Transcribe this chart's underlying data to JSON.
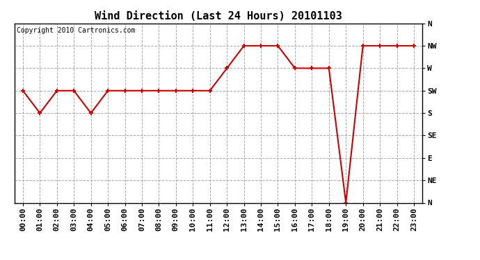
{
  "title": "Wind Direction (Last 24 Hours) 20101103",
  "copyright": "Copyright 2010 Cartronics.com",
  "hours": [
    "00:00",
    "01:00",
    "02:00",
    "03:00",
    "04:00",
    "05:00",
    "06:00",
    "07:00",
    "08:00",
    "09:00",
    "10:00",
    "11:00",
    "12:00",
    "13:00",
    "14:00",
    "15:00",
    "16:00",
    "17:00",
    "18:00",
    "19:00",
    "20:00",
    "21:00",
    "22:00",
    "23:00"
  ],
  "values": [
    225,
    180,
    225,
    225,
    180,
    225,
    225,
    225,
    225,
    225,
    225,
    225,
    270,
    315,
    315,
    315,
    270,
    270,
    270,
    0,
    315,
    315,
    315,
    315
  ],
  "yticks": [
    360,
    315,
    270,
    225,
    180,
    135,
    90,
    45,
    0
  ],
  "ytick_labels": [
    "N",
    "NW",
    "W",
    "SW",
    "S",
    "SE",
    "E",
    "NE",
    "N"
  ],
  "ylim": [
    0,
    360
  ],
  "line_color": "#cc0000",
  "marker": "+",
  "marker_size": 5,
  "marker_color": "#cc0000",
  "bg_color": "#ffffff",
  "grid_color": "#aaaaaa",
  "title_fontsize": 11,
  "copyright_fontsize": 7,
  "tick_fontsize": 8,
  "line_width": 1.5
}
